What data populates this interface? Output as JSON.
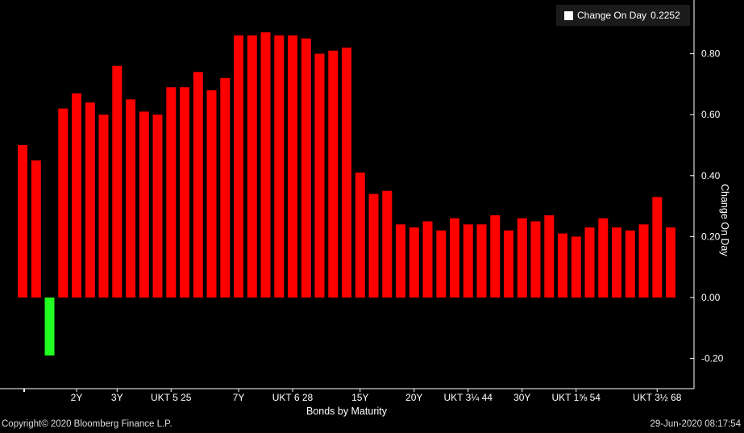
{
  "chart_data": {
    "type": "bar",
    "title": "",
    "xlabel": "Bonds by Maturity",
    "ylabel": "Change On Day",
    "ylim": [
      -0.3,
      0.92
    ],
    "yticks": [
      -0.2,
      0.0,
      0.2,
      0.4,
      0.6,
      0.8
    ],
    "ytick_labels": [
      "-0.20",
      "0.00",
      "0.20",
      "0.40",
      "0.60",
      "0.80"
    ],
    "y_axis_side": "right",
    "grid": false,
    "legend_position": "top-right",
    "series": [
      {
        "name": "Change On Day",
        "legend_value": "0.2252",
        "positive_color": "#ff0000",
        "negative_color": "#22ff22",
        "values": [
          0.5,
          0.45,
          -0.19,
          0.62,
          0.67,
          0.64,
          0.6,
          0.76,
          0.65,
          0.61,
          0.6,
          0.69,
          0.69,
          0.74,
          0.68,
          0.72,
          0.86,
          0.86,
          0.87,
          0.86,
          0.86,
          0.85,
          0.8,
          0.81,
          0.82,
          0.41,
          0.34,
          0.35,
          0.24,
          0.23,
          0.25,
          0.22,
          0.26,
          0.24,
          0.24,
          0.27,
          0.22,
          0.26,
          0.25,
          0.27,
          0.21,
          0.2,
          0.23,
          0.26,
          0.23,
          0.22,
          0.24,
          0.33,
          0.23
        ]
      }
    ],
    "category_labels": [
      {
        "index": 4,
        "label": "2Y"
      },
      {
        "index": 7,
        "label": "3Y"
      },
      {
        "index": 11,
        "label": "UKT 5 25"
      },
      {
        "index": 16,
        "label": "7Y"
      },
      {
        "index": 20,
        "label": "UKT 6 28"
      },
      {
        "index": 25,
        "label": "15Y"
      },
      {
        "index": 29,
        "label": "20Y"
      },
      {
        "index": 33,
        "label": "UKT 3¼ 44"
      },
      {
        "index": 37,
        "label": "30Y"
      },
      {
        "index": 41,
        "label": "UKT 1⅝ 54"
      },
      {
        "index": 47,
        "label": "UKT 3½ 68"
      }
    ]
  },
  "footer": {
    "copyright": "Copyright© 2020 Bloomberg Finance L.P.",
    "timestamp": "29-Jun-2020 08:17:54"
  }
}
